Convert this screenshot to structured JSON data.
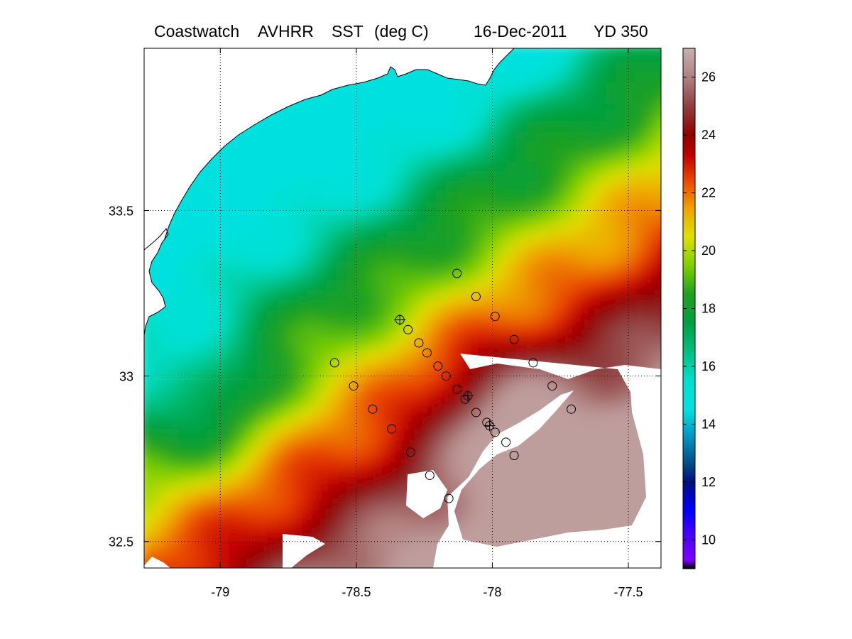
{
  "title": {
    "source": "Coastwatch",
    "sensor": "AVHRR",
    "product": "SST",
    "units": "(deg C)",
    "date": "16-Dec-2011",
    "yearday": "YD 350"
  },
  "map": {
    "lon_range": [
      -79.28,
      -77.38
    ],
    "lat_range": [
      32.42,
      33.99
    ],
    "lon_ticks": [
      {
        "value": -79,
        "label": "-79"
      },
      {
        "value": -78.5,
        "label": "-78.5"
      },
      {
        "value": -78,
        "label": "-78"
      },
      {
        "value": -77.5,
        "label": "-77.5"
      }
    ],
    "lat_ticks": [
      {
        "value": 33.5,
        "label": "33.5"
      },
      {
        "value": 33,
        "label": "33"
      },
      {
        "value": 32.5,
        "label": "32.5"
      }
    ],
    "grid": "dotted",
    "land_color": "#ffffff",
    "no_data_color": "#ffffff",
    "coastline_color": "#000000"
  },
  "colorbar": {
    "range": [
      9,
      27
    ],
    "ticks": [
      {
        "value": 10,
        "label": "10"
      },
      {
        "value": 12,
        "label": "12"
      },
      {
        "value": 14,
        "label": "14"
      },
      {
        "value": 16,
        "label": "16"
      },
      {
        "value": 18,
        "label": "18"
      },
      {
        "value": 20,
        "label": "20"
      },
      {
        "value": 22,
        "label": "22"
      },
      {
        "value": 24,
        "label": "24"
      },
      {
        "value": 26,
        "label": "26"
      }
    ],
    "stops": [
      {
        "value": 9.0,
        "color": "#000000"
      },
      {
        "value": 9.3,
        "color": "#8000ff"
      },
      {
        "value": 10.3,
        "color": "#4000ff"
      },
      {
        "value": 11.0,
        "color": "#0000ff"
      },
      {
        "value": 12.0,
        "color": "#001080"
      },
      {
        "value": 12.6,
        "color": "#004a80"
      },
      {
        "value": 13.5,
        "color": "#0090c0"
      },
      {
        "value": 14.5,
        "color": "#00e0e0"
      },
      {
        "value": 15.5,
        "color": "#00e0d0"
      },
      {
        "value": 16.5,
        "color": "#00c080"
      },
      {
        "value": 17.5,
        "color": "#00a040"
      },
      {
        "value": 18.5,
        "color": "#20a020"
      },
      {
        "value": 19.5,
        "color": "#80d000"
      },
      {
        "value": 20.5,
        "color": "#e0e000"
      },
      {
        "value": 21.5,
        "color": "#f0a000"
      },
      {
        "value": 22.5,
        "color": "#e84000"
      },
      {
        "value": 23.3,
        "color": "#c00000"
      },
      {
        "value": 24.0,
        "color": "#900000"
      },
      {
        "value": 25.0,
        "color": "#904040"
      },
      {
        "value": 26.0,
        "color": "#b08080"
      },
      {
        "value": 27.0,
        "color": "#c8b0b0"
      }
    ]
  },
  "stations": {
    "circles": [
      {
        "lon": -78.13,
        "lat": 33.31
      },
      {
        "lon": -78.06,
        "lat": 33.24
      },
      {
        "lon": -77.99,
        "lat": 33.18
      },
      {
        "lon": -77.92,
        "lat": 33.11
      },
      {
        "lon": -77.85,
        "lat": 33.04
      },
      {
        "lon": -77.78,
        "lat": 32.97
      },
      {
        "lon": -77.71,
        "lat": 32.9
      },
      {
        "lon": -78.31,
        "lat": 33.14
      },
      {
        "lon": -78.27,
        "lat": 33.1
      },
      {
        "lon": -78.24,
        "lat": 33.07
      },
      {
        "lon": -78.2,
        "lat": 33.03
      },
      {
        "lon": -78.17,
        "lat": 33.0
      },
      {
        "lon": -78.13,
        "lat": 32.96
      },
      {
        "lon": -78.1,
        "lat": 32.93
      },
      {
        "lon": -78.06,
        "lat": 32.89
      },
      {
        "lon": -78.02,
        "lat": 32.86
      },
      {
        "lon": -77.99,
        "lat": 32.83
      },
      {
        "lon": -77.95,
        "lat": 32.8
      },
      {
        "lon": -77.92,
        "lat": 32.76
      },
      {
        "lon": -78.58,
        "lat": 33.04
      },
      {
        "lon": -78.51,
        "lat": 32.97
      },
      {
        "lon": -78.44,
        "lat": 32.9
      },
      {
        "lon": -78.37,
        "lat": 32.84
      },
      {
        "lon": -78.3,
        "lat": 32.77
      },
      {
        "lon": -78.23,
        "lat": 32.7
      },
      {
        "lon": -78.16,
        "lat": 32.63
      }
    ],
    "crosses": [
      {
        "lon": -78.34,
        "lat": 33.17
      },
      {
        "lon": -78.09,
        "lat": 32.94
      },
      {
        "lon": -78.01,
        "lat": 32.85
      }
    ]
  }
}
